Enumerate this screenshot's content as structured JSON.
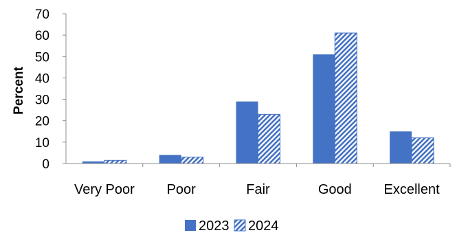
{
  "chart_data": {
    "type": "bar",
    "categories": [
      "Very Poor",
      "Poor",
      "Fair",
      "Good",
      "Excellent"
    ],
    "series": [
      {
        "name": "2023",
        "values": [
          1,
          4,
          29,
          51,
          15
        ],
        "color": "#4472C4",
        "pattern": "solid"
      },
      {
        "name": "2024",
        "values": [
          1.5,
          3,
          23,
          61,
          12
        ],
        "color": "#4472C4",
        "pattern": "diagonal-hatch"
      }
    ],
    "ylabel": "Percent",
    "xlabel": "",
    "ylim": [
      0,
      70
    ],
    "yticks": [
      0,
      10,
      20,
      30,
      40,
      50,
      60,
      70
    ],
    "grid": false,
    "legend": "bottom"
  }
}
